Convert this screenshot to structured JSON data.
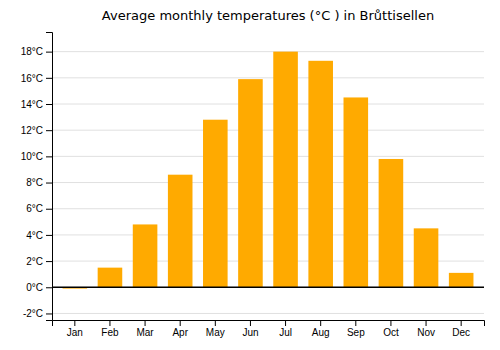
{
  "chart_data": {
    "type": "bar",
    "title": "Average monthly temperatures (°C ) in Brůttisellen",
    "categories": [
      "Jan",
      "Feb",
      "Mar",
      "Apr",
      "May",
      "Jun",
      "Jul",
      "Aug",
      "Sep",
      "Oct",
      "Nov",
      "Dec"
    ],
    "values": [
      -0.1,
      1.5,
      4.8,
      8.6,
      12.8,
      15.9,
      18.0,
      17.3,
      14.5,
      9.8,
      4.5,
      1.1
    ],
    "color": "#FFAA00",
    "ylim": [
      -2.5,
      19.5
    ],
    "yticks": [
      {
        "value": -2,
        "label": "-2°C"
      },
      {
        "value": 0,
        "label": "0°C"
      },
      {
        "value": 2,
        "label": "2°C"
      },
      {
        "value": 4,
        "label": "4°C"
      },
      {
        "value": 6,
        "label": "6°C"
      },
      {
        "value": 8,
        "label": "8°C"
      },
      {
        "value": 10,
        "label": "10°C"
      },
      {
        "value": 12,
        "label": "12°C"
      },
      {
        "value": 14,
        "label": "14°C"
      },
      {
        "value": 16,
        "label": "16°C"
      },
      {
        "value": 18,
        "label": "18°C"
      }
    ],
    "grid": true
  }
}
